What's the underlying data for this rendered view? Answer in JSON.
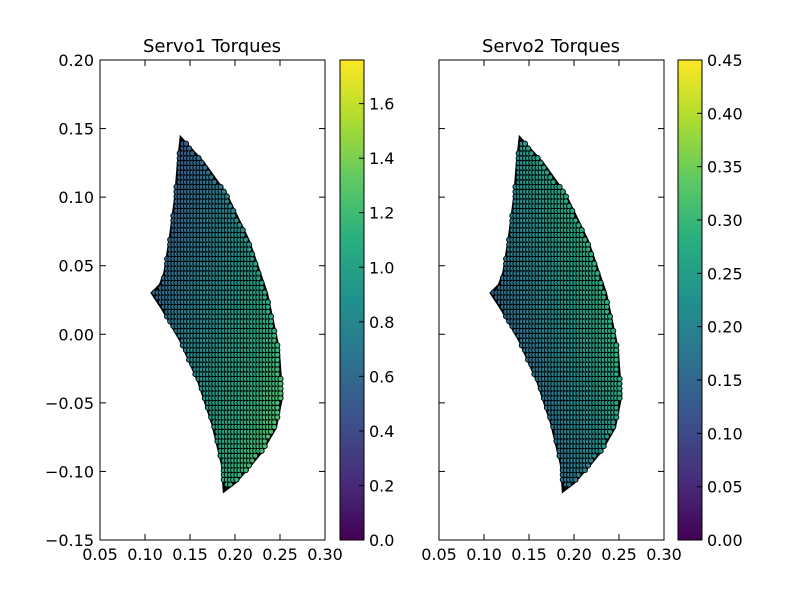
{
  "chart_data": [
    {
      "type": "scatter",
      "title": "Servo1 Torques",
      "xlabel": "",
      "ylabel": "",
      "xlim": [
        0.05,
        0.3
      ],
      "ylim": [
        -0.15,
        0.2
      ],
      "xticks": [
        "0.05",
        "0.10",
        "0.15",
        "0.20",
        "0.25",
        "0.30"
      ],
      "yticks": [
        "0.20",
        "0.15",
        "0.10",
        "0.05",
        "0.00",
        "−0.05",
        "−0.10",
        "−0.15"
      ],
      "colormap": "viridis",
      "colorbar": {
        "range": [
          0.0,
          1.76
        ],
        "ticks": [
          "0.0",
          "0.2",
          "0.4",
          "0.6",
          "0.8",
          "1.0",
          "1.2",
          "1.4",
          "1.6"
        ]
      },
      "description_of_data": "workspace points colored by torque",
      "region": {
        "outer_arc_points": [
          [
            0.14,
            0.143
          ],
          [
            0.165,
            0.125
          ],
          [
            0.19,
            0.102
          ],
          [
            0.215,
            0.068
          ],
          [
            0.235,
            0.03
          ],
          [
            0.248,
            -0.01
          ],
          [
            0.252,
            -0.045
          ],
          [
            0.245,
            -0.068
          ],
          [
            0.23,
            -0.085
          ],
          [
            0.215,
            -0.097
          ],
          [
            0.2,
            -0.108
          ],
          [
            0.188,
            -0.114
          ]
        ],
        "inner_arc_points": [
          [
            0.188,
            -0.114
          ],
          [
            0.186,
            -0.095
          ],
          [
            0.175,
            -0.065
          ],
          [
            0.16,
            -0.035
          ],
          [
            0.14,
            -0.005
          ],
          [
            0.12,
            0.018
          ],
          [
            0.108,
            0.03
          ]
        ],
        "left_edge_points": [
          [
            0.108,
            0.03
          ],
          [
            0.117,
            0.036
          ],
          [
            0.122,
            0.045
          ],
          [
            0.128,
            0.07
          ],
          [
            0.134,
            0.1
          ],
          [
            0.137,
            0.125
          ],
          [
            0.14,
            0.143
          ]
        ],
        "value_low": 0.4,
        "value_high": 1.35
      }
    },
    {
      "type": "scatter",
      "title": "Servo2 Torques",
      "xlabel": "",
      "ylabel": "",
      "xlim": [
        0.05,
        0.3
      ],
      "ylim": [
        -0.15,
        0.2
      ],
      "xticks": [
        "0.05",
        "0.10",
        "0.15",
        "0.20",
        "0.25",
        "0.30"
      ],
      "yticks": [],
      "colormap": "viridis",
      "colorbar": {
        "range": [
          0.0,
          0.45
        ],
        "ticks": [
          "0.00",
          "0.05",
          "0.10",
          "0.15",
          "0.20",
          "0.25",
          "0.30",
          "0.35",
          "0.40",
          "0.45"
        ]
      },
      "description_of_data": "workspace points colored by torque",
      "region": {
        "outer_arc_points": [
          [
            0.14,
            0.143
          ],
          [
            0.165,
            0.125
          ],
          [
            0.19,
            0.102
          ],
          [
            0.215,
            0.068
          ],
          [
            0.235,
            0.03
          ],
          [
            0.248,
            -0.01
          ],
          [
            0.252,
            -0.045
          ],
          [
            0.245,
            -0.068
          ],
          [
            0.23,
            -0.085
          ],
          [
            0.215,
            -0.097
          ],
          [
            0.2,
            -0.108
          ],
          [
            0.188,
            -0.114
          ]
        ],
        "inner_arc_points": [
          [
            0.188,
            -0.114
          ],
          [
            0.186,
            -0.095
          ],
          [
            0.175,
            -0.065
          ],
          [
            0.16,
            -0.035
          ],
          [
            0.14,
            -0.005
          ],
          [
            0.12,
            0.018
          ],
          [
            0.108,
            0.03
          ]
        ],
        "left_edge_points": [
          [
            0.108,
            0.03
          ],
          [
            0.117,
            0.036
          ],
          [
            0.122,
            0.045
          ],
          [
            0.128,
            0.07
          ],
          [
            0.134,
            0.1
          ],
          [
            0.137,
            0.125
          ],
          [
            0.14,
            0.143
          ]
        ],
        "value_low": 0.08,
        "value_high": 0.36
      }
    }
  ]
}
